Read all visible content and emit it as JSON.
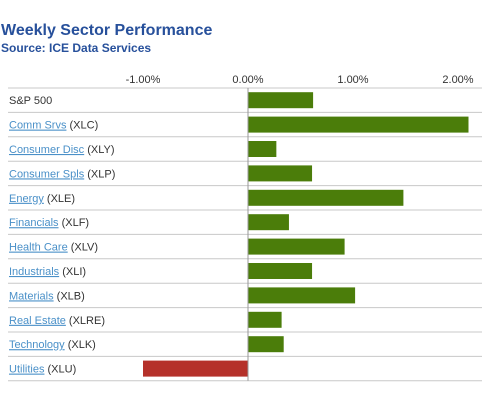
{
  "chart_data": {
    "type": "bar",
    "orientation": "horizontal",
    "title": "Weekly Sector Performance",
    "subtitle": "Source: ICE Data Services",
    "xlim": [
      -2.0,
      2.6
    ],
    "xticks": [
      -1.0,
      0.0,
      1.0,
      2.0
    ],
    "xtick_labels": [
      "-1.00%",
      "0.00%",
      "1.00%",
      "2.00%"
    ],
    "categories": [
      {
        "name": "S&P 500",
        "ticker": "",
        "linked": false
      },
      {
        "name": "Comm Srvs",
        "ticker": "(XLC)",
        "linked": true
      },
      {
        "name": "Consumer Disc",
        "ticker": "(XLY)",
        "linked": true
      },
      {
        "name": "Consumer Spls",
        "ticker": "(XLP)",
        "linked": true
      },
      {
        "name": "Energy",
        "ticker": "(XLE)",
        "linked": true
      },
      {
        "name": "Financials",
        "ticker": "(XLF)",
        "linked": true
      },
      {
        "name": "Health Care",
        "ticker": "(XLV)",
        "linked": true
      },
      {
        "name": "Industrials",
        "ticker": "(XLI)",
        "linked": true
      },
      {
        "name": "Materials",
        "ticker": "(XLB)",
        "linked": true
      },
      {
        "name": "Real Estate",
        "ticker": "(XLRE)",
        "linked": true
      },
      {
        "name": "Technology",
        "ticker": "(XLK)",
        "linked": true
      },
      {
        "name": "Utilities",
        "ticker": "(XLU)",
        "linked": true
      }
    ],
    "values": [
      0.62,
      2.1,
      0.27,
      0.61,
      1.48,
      0.39,
      0.92,
      0.61,
      1.02,
      0.32,
      0.34,
      -1.0
    ],
    "colors": {
      "positive": "#4b7d0a",
      "negative": "#b5312a",
      "link": "#4a90c8",
      "text": "#333333",
      "grid": "#c8c8c8"
    },
    "grid": true
  }
}
